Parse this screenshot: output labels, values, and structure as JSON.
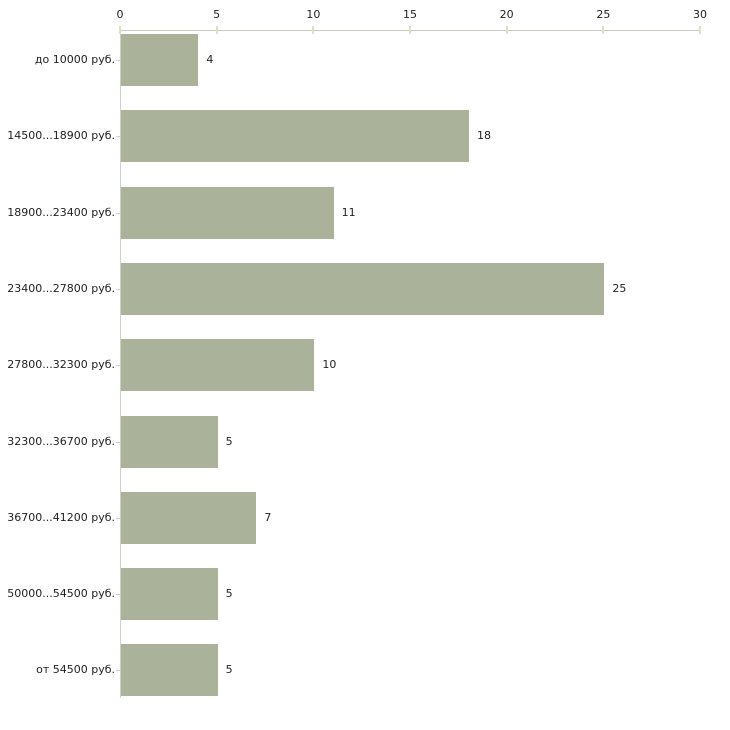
{
  "chart_data": {
    "type": "bar",
    "orientation": "horizontal",
    "title": "",
    "xlabel": "",
    "ylabel": "",
    "categories": [
      "до 10000 руб.",
      "14500...18900 руб.",
      "18900...23400 руб.",
      "23400...27800 руб.",
      "27800...32300 руб.",
      "32300...36700 руб.",
      "36700...41200 руб.",
      "50000...54500 руб.",
      "от 54500 руб."
    ],
    "values": [
      4,
      18,
      11,
      25,
      10,
      5,
      7,
      5,
      5
    ],
    "x_ticks": [
      0,
      5,
      10,
      15,
      20,
      25,
      30
    ],
    "xlim": [
      0,
      30
    ],
    "grid": false,
    "legend": "none",
    "bar_color": "#abb29a",
    "text_color": "#222222",
    "axis_line_color": "#c9ccbe",
    "tick_mark_color": "#dde1c4",
    "category_tick_color": "#cdd0c4"
  }
}
